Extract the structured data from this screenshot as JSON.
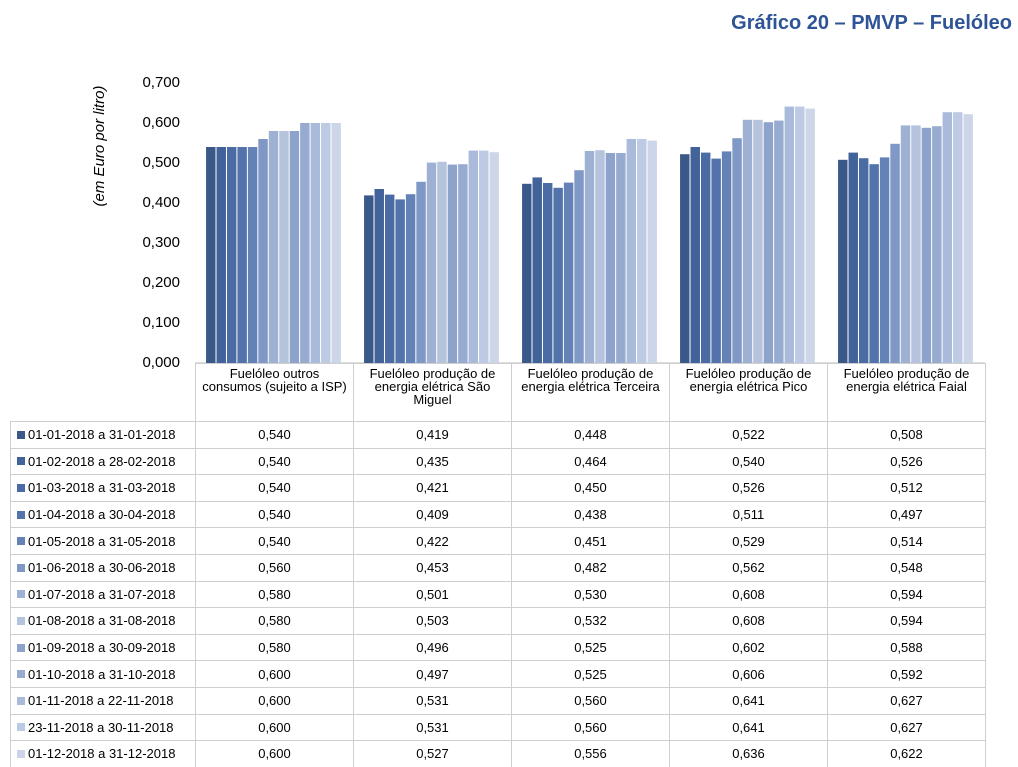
{
  "chart_data": {
    "type": "bar",
    "title": "Gráfico 20 – PMVP – Fuelóleo",
    "y_label": "(em Euro por litro)",
    "categories": [
      "Fuelóleo outros consumos (sujeito a ISP)",
      "Fuelóleo produção de energia elétrica São Miguel",
      "Fuelóleo produção de energia elétrica Terceira",
      "Fuelóleo produção de energia elétrica Pico",
      "Fuelóleo produção de energia elétrica Faial"
    ],
    "ylim": [
      0,
      0.7
    ],
    "yticks": [
      {
        "value": 0,
        "label": "0,000"
      },
      {
        "value": 0.1,
        "label": "0,100"
      },
      {
        "value": 0.2,
        "label": "0,200"
      },
      {
        "value": 0.3,
        "label": "0,300"
      },
      {
        "value": 0.4,
        "label": "0,400"
      },
      {
        "value": 0.5,
        "label": "0,500"
      },
      {
        "value": 0.6,
        "label": "0,600"
      },
      {
        "value": 0.7,
        "label": "0,700"
      }
    ],
    "grid": false,
    "series": [
      {
        "name": "01-01-2018 a 31-01-2018",
        "color": "#3a5888",
        "values": [
          0.54,
          0.419,
          0.448,
          0.522,
          0.508
        ],
        "value_labels": [
          "0,540",
          "0,419",
          "0,448",
          "0,522",
          "0,508"
        ]
      },
      {
        "name": "01-02-2018 a 28-02-2018",
        "color": "#42639a",
        "values": [
          0.54,
          0.435,
          0.464,
          0.54,
          0.526
        ],
        "value_labels": [
          "0,540",
          "0,435",
          "0,464",
          "0,540",
          "0,526"
        ]
      },
      {
        "name": "01-03-2018 a 31-03-2018",
        "color": "#4a6ba3",
        "values": [
          0.54,
          0.421,
          0.45,
          0.526,
          0.512
        ],
        "value_labels": [
          "0,540",
          "0,421",
          "0,450",
          "0,526",
          "0,512"
        ]
      },
      {
        "name": "01-04-2018 a 30-04-2018",
        "color": "#5273ab",
        "values": [
          0.54,
          0.409,
          0.438,
          0.511,
          0.497
        ],
        "value_labels": [
          "0,540",
          "0,409",
          "0,438",
          "0,511",
          "0,497"
        ]
      },
      {
        "name": "01-05-2018 a 31-05-2018",
        "color": "#6482b5",
        "values": [
          0.54,
          0.422,
          0.451,
          0.529,
          0.514
        ],
        "value_labels": [
          "0,540",
          "0,422",
          "0,451",
          "0,529",
          "0,514"
        ]
      },
      {
        "name": "01-06-2018 a 30-06-2018",
        "color": "#8098c5",
        "values": [
          0.56,
          0.453,
          0.482,
          0.562,
          0.548
        ],
        "value_labels": [
          "0,560",
          "0,453",
          "0,482",
          "0,562",
          "0,548"
        ]
      },
      {
        "name": "01-07-2018 a 31-07-2018",
        "color": "#9fb1d3",
        "values": [
          0.58,
          0.501,
          0.53,
          0.608,
          0.594
        ],
        "value_labels": [
          "0,580",
          "0,501",
          "0,530",
          "0,608",
          "0,594"
        ]
      },
      {
        "name": "01-08-2018 a 31-08-2018",
        "color": "#b5c3dd",
        "values": [
          0.58,
          0.503,
          0.532,
          0.608,
          0.594
        ],
        "value_labels": [
          "0,580",
          "0,503",
          "0,532",
          "0,608",
          "0,594"
        ]
      },
      {
        "name": "01-09-2018 a 30-09-2018",
        "color": "#8ea3cb",
        "values": [
          0.58,
          0.496,
          0.525,
          0.602,
          0.588
        ],
        "value_labels": [
          "0,580",
          "0,496",
          "0,525",
          "0,602",
          "0,588"
        ]
      },
      {
        "name": "01-10-2018 a 31-10-2018",
        "color": "#97abd0",
        "values": [
          0.6,
          0.497,
          0.525,
          0.606,
          0.592
        ],
        "value_labels": [
          "0,600",
          "0,497",
          "0,525",
          "0,606",
          "0,592"
        ]
      },
      {
        "name": "01-11-2018 a 22-11-2018",
        "color": "#a9badb",
        "values": [
          0.6,
          0.531,
          0.56,
          0.641,
          0.627
        ],
        "value_labels": [
          "0,600",
          "0,531",
          "0,560",
          "0,641",
          "0,627"
        ]
      },
      {
        "name": "23-11-2018 a 30-11-2018",
        "color": "#bccae3",
        "values": [
          0.6,
          0.531,
          0.56,
          0.641,
          0.627
        ],
        "value_labels": [
          "0,600",
          "0,531",
          "0,560",
          "0,641",
          "0,627"
        ]
      },
      {
        "name": "01-12-2018 a 31-12-2018",
        "color": "#cdd6e9",
        "values": [
          0.6,
          0.527,
          0.556,
          0.636,
          0.622
        ],
        "value_labels": [
          "0,600",
          "0,527",
          "0,556",
          "0,636",
          "0,622"
        ]
      }
    ]
  }
}
